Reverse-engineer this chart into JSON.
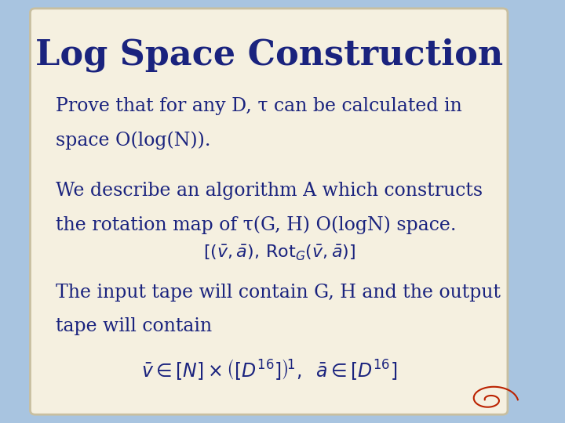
{
  "title": "Log Space Construction",
  "title_color": "#1a237e",
  "title_fontsize": 32,
  "bg_color": "#a8c4e0",
  "paper_color": "#f5f0e0",
  "text_color": "#1a237e",
  "body_fontsize": 17,
  "line1": "Prove that for any D, τ can be calculated in",
  "line2": "space O(log(N)).",
  "line3": "We describe an algorithm A which constructs",
  "line4": "the rotation map of τ(G, H) O(logN) space.",
  "formula1": "$\\left[(\\bar{v},\\bar{a}),\\, \\mathrm{Rot}_G(\\bar{v},\\bar{a})\\right]$",
  "line5": "The input tape will contain G, H and the output",
  "line6": "tape will contain",
  "formula2": "$\\bar{v} \\in [N] \\times \\left(\\left[D^{16}\\right]\\right)^{\\!1},\\;\\; \\bar{a} \\in \\left[D^{16}\\right]$"
}
